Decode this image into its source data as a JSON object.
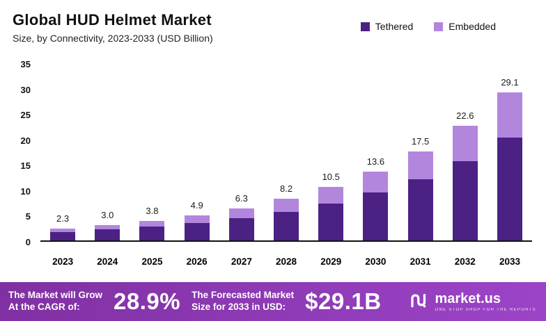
{
  "header": {
    "title": "Global HUD Helmet Market",
    "subtitle": "Size, by Connectivity, 2023-2033 (USD Billion)"
  },
  "chart_data": {
    "type": "bar",
    "stacked": true,
    "title": "Global HUD Helmet Market Size, by Connectivity, 2023-2033 (USD Billion)",
    "categories": [
      "2023",
      "2024",
      "2025",
      "2026",
      "2027",
      "2028",
      "2029",
      "2030",
      "2031",
      "2032",
      "2033"
    ],
    "series": [
      {
        "name": "Tethered",
        "color": "#4c2184",
        "values": [
          1.7,
          2.2,
          2.7,
          3.4,
          4.4,
          5.6,
          7.2,
          9.4,
          12.1,
          15.6,
          20.3
        ]
      },
      {
        "name": "Embedded",
        "color": "#b286dd",
        "values": [
          0.6,
          0.8,
          1.1,
          1.5,
          1.9,
          2.6,
          3.3,
          4.2,
          5.4,
          7.0,
          8.8
        ]
      }
    ],
    "totals_labels": [
      "2.3",
      "3.0",
      "3.8",
      "4.9",
      "6.3",
      "8.2",
      "10.5",
      "13.6",
      "17.5",
      "22.6",
      "29.1"
    ],
    "xlabel": "",
    "ylabel": "",
    "yticks": [
      0,
      5,
      10,
      15,
      20,
      25,
      30,
      35
    ],
    "ylim": [
      0,
      35
    ],
    "grid": false,
    "legend_position": "top-right"
  },
  "banner": {
    "cagr_label_line1": "The Market will Grow",
    "cagr_label_line2": "At the CAGR of:",
    "cagr_value": "28.9%",
    "forecast_label_line1": "The Forecasted Market",
    "forecast_label_line2": "Size for 2033 in USD:",
    "forecast_value": "$29.1B",
    "background_left": "#8030a2",
    "background_right": "#9c44c8"
  },
  "logo": {
    "name": "market.us",
    "tagline": "ONE STOP SHOP FOR THE REPORTS"
  }
}
